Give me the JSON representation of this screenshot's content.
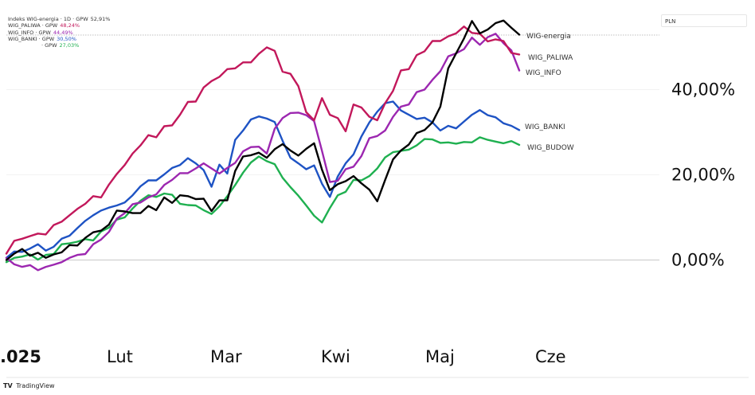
{
  "legend": [
    {
      "name": "Indeks WIG-energia · 1D · GPW",
      "value": "52,91%",
      "color": "#333333"
    },
    {
      "name": "WIG_PALIWA · GPW",
      "value": "48,24%",
      "color": "#c2185b"
    },
    {
      "name": "WIG_INFO · GPW",
      "value": "44,49%",
      "color": "#9c27b0"
    },
    {
      "name": "WIG_BANKI · GPW",
      "value": "30,50%",
      "color": "#1e53c4"
    },
    {
      "name": "· GPW",
      "value": "27,03%",
      "color": "#1fb050"
    }
  ],
  "currency": "PLN",
  "footer": {
    "logo": "TV",
    "brand": "TradingView"
  },
  "chart_data": {
    "type": "line",
    "x_labels": [
      ".025",
      "Lut",
      "Mar",
      "Kwi",
      "Maj",
      "Cze"
    ],
    "y_ticks": [
      "40,00%",
      "20,00%",
      "0,00%"
    ],
    "y_tick_values": [
      40,
      20,
      0
    ],
    "ylim": [
      -16,
      58
    ],
    "grid": true,
    "series": [
      {
        "name": "WIG-energia",
        "label": "WIG-energia",
        "color": "#000000",
        "values": [
          0,
          1.5,
          2.6,
          1,
          1.7,
          0.5,
          1.3,
          1.8,
          3.5,
          3.4,
          5.2,
          6.5,
          6.9,
          8.3,
          11.6,
          11.4,
          11,
          11,
          12.7,
          11.7,
          14.7,
          13.4,
          15.2,
          15,
          14.3,
          14.4,
          11.5,
          14,
          14,
          20.9,
          24.3,
          24.6,
          25.2,
          24,
          26,
          27.2,
          25.7,
          24.5,
          26.1,
          27.4,
          21.2,
          16.4,
          17.8,
          18.5,
          19.7,
          18,
          16.5,
          13.8,
          18.8,
          23.6,
          25.7,
          27.1,
          29.8,
          30.5,
          32.3,
          36,
          45,
          48.5,
          52,
          56.1,
          53.2,
          54.1,
          55.6,
          56.2,
          54.5,
          52.9
        ]
      },
      {
        "name": "WIG_PALIWA",
        "label": "WIG_PALIWA",
        "color": "#c2185b",
        "values": [
          1.5,
          4.5,
          5,
          5.6,
          6.2,
          6,
          8.2,
          9,
          10.5,
          12,
          13.2,
          15,
          14.7,
          17.7,
          20.2,
          22.3,
          25,
          26.9,
          29.3,
          28.8,
          31.4,
          31.6,
          34.1,
          37.1,
          37.2,
          40.5,
          42,
          43,
          44.8,
          45,
          46.4,
          46.4,
          48.4,
          49.9,
          49.1,
          44.2,
          43.7,
          40.8,
          34.7,
          32.8,
          38,
          34.1,
          33.3,
          30.2,
          36.5,
          35.8,
          33.6,
          32.8,
          36.8,
          39.7,
          44.5,
          44.8,
          48.1,
          49,
          51.4,
          51.4,
          52.5,
          53.2,
          54.8,
          53.3,
          53.1,
          51.3,
          51.8,
          51.4,
          48.6,
          48.24
        ]
      },
      {
        "name": "WIG_INFO",
        "label": "WIG_INFO",
        "color": "#9c27b0",
        "values": [
          0.5,
          -1,
          -1.6,
          -1.2,
          -2.4,
          -1.6,
          -1.1,
          -0.5,
          0.5,
          1.2,
          1.4,
          3.7,
          4.8,
          6.6,
          9.7,
          11,
          13.1,
          13.5,
          14.7,
          15.4,
          17.6,
          18.8,
          20.4,
          20.4,
          21.5,
          22.7,
          21.5,
          20.3,
          21.6,
          22.8,
          25.5,
          26.5,
          26.6,
          25,
          30.8,
          33.3,
          34.5,
          34.6,
          34,
          32.6,
          25.6,
          18.3,
          18.6,
          21.3,
          21.9,
          24.4,
          28.6,
          29.1,
          30.4,
          33.6,
          36,
          36.5,
          39.4,
          40,
          42.3,
          44.3,
          47.8,
          48.5,
          49.5,
          52.2,
          50.5,
          52.3,
          53.1,
          50.9,
          49.2,
          44.49
        ]
      },
      {
        "name": "WIG_BANKI",
        "label": "WIG_BANKI",
        "color": "#1e53c4",
        "values": [
          0.5,
          2,
          1.9,
          2.7,
          3.7,
          2.2,
          3.1,
          5,
          5.7,
          7.5,
          9.2,
          10.5,
          11.6,
          12.3,
          12.8,
          13.5,
          15.2,
          17.3,
          18.7,
          18.7,
          20.1,
          21.6,
          22.3,
          23.9,
          22.7,
          21.1,
          17.2,
          22.4,
          20.3,
          28.2,
          30.4,
          33,
          33.7,
          33.2,
          32.4,
          28,
          24,
          22.7,
          21.3,
          22.2,
          17.9,
          14.8,
          19.6,
          22.7,
          24.8,
          29,
          32.3,
          34.8,
          36.8,
          37.2,
          35.1,
          34.1,
          33.1,
          33.4,
          32.3,
          30.4,
          31.5,
          30.9,
          32.5,
          34.1,
          35.2,
          34,
          33.5,
          32.1,
          31.5,
          30.5
        ]
      },
      {
        "name": "WIG_BUDOW",
        "label": "WIG_BUDOW",
        "color": "#1fb050",
        "values": [
          -0.5,
          0.5,
          0.8,
          1.3,
          0.1,
          1.2,
          1.4,
          3.7,
          3.9,
          4.3,
          4.9,
          4.6,
          6.7,
          7.6,
          9.5,
          10,
          12.1,
          13.9,
          15.2,
          14.8,
          15.6,
          15.3,
          13.2,
          12.9,
          12.8,
          11.7,
          10.8,
          12.6,
          15,
          17.6,
          20.5,
          22.9,
          24.3,
          23.2,
          22.5,
          19.3,
          17.1,
          15.1,
          12.8,
          10.4,
          8.8,
          12.2,
          15.2,
          16,
          18.8,
          18.7,
          19.7,
          21.5,
          24.1,
          25.3,
          25.6,
          25.9,
          26.9,
          28.4,
          28.3,
          27.5,
          27.6,
          27.3,
          27.7,
          27.6,
          28.8,
          28.2,
          27.8,
          27.4,
          27.9,
          27.03
        ]
      }
    ]
  }
}
